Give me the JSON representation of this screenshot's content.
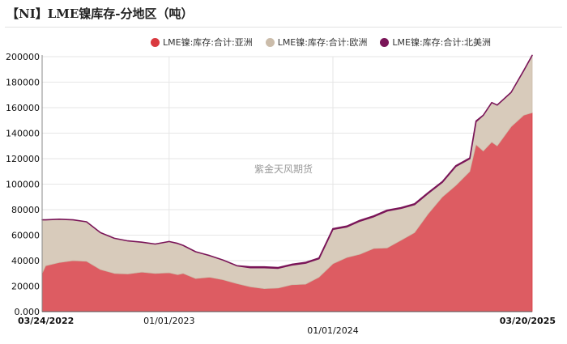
{
  "chart_data": {
    "type": "area",
    "stacked": true,
    "title": "【NI】LME镍库存-分地区（吨）",
    "watermark": "紫金天风期货",
    "yticks": [
      "0.000",
      "20000",
      "40000",
      "60000",
      "80000",
      "100000",
      "120000",
      "140000",
      "160000",
      "180000",
      "200000"
    ],
    "ylim": [
      0,
      200000
    ],
    "x_range": [
      "2022-03-24",
      "2025-03-20"
    ],
    "xticks": [
      {
        "label": "03/24/2022",
        "date": "2022-03-24",
        "bold": true
      },
      {
        "label": "01/01/2023",
        "date": "2023-01-01",
        "bold": false
      },
      {
        "label": "01/01/2024",
        "date": "2024-01-01",
        "bold": false
      },
      {
        "label": "03/20/2025",
        "date": "2025-03-20",
        "bold": true
      }
    ],
    "grid": true,
    "legend_position": "top",
    "series": [
      {
        "name": "LME镍:库存:合计:亚洲",
        "color": "#d9393f",
        "fill": "#dd5c62",
        "points": [
          [
            "2022-03-24",
            30000
          ],
          [
            "2022-04-01",
            36000
          ],
          [
            "2022-05-01",
            38500
          ],
          [
            "2022-06-01",
            40000
          ],
          [
            "2022-07-01",
            39500
          ],
          [
            "2022-08-01",
            33000
          ],
          [
            "2022-09-01",
            30000
          ],
          [
            "2022-10-01",
            29500
          ],
          [
            "2022-11-01",
            31000
          ],
          [
            "2022-12-01",
            30000
          ],
          [
            "2023-01-01",
            30500
          ],
          [
            "2023-01-20",
            29000
          ],
          [
            "2023-02-01",
            30000
          ],
          [
            "2023-03-01",
            26000
          ],
          [
            "2023-04-01",
            27000
          ],
          [
            "2023-05-01",
            25000
          ],
          [
            "2023-06-01",
            22000
          ],
          [
            "2023-07-01",
            19500
          ],
          [
            "2023-08-01",
            18000
          ],
          [
            "2023-09-01",
            18500
          ],
          [
            "2023-10-01",
            21000
          ],
          [
            "2023-11-01",
            21500
          ],
          [
            "2023-12-01",
            27000
          ],
          [
            "2024-01-01",
            37500
          ],
          [
            "2024-02-01",
            42500
          ],
          [
            "2024-03-01",
            45000
          ],
          [
            "2024-04-01",
            49500
          ],
          [
            "2024-05-01",
            50000
          ],
          [
            "2024-06-01",
            56000
          ],
          [
            "2024-07-01",
            62000
          ],
          [
            "2024-08-01",
            77000
          ],
          [
            "2024-09-01",
            90000
          ],
          [
            "2024-10-01",
            99000
          ],
          [
            "2024-11-01",
            110000
          ],
          [
            "2024-11-15",
            131000
          ],
          [
            "2024-12-01",
            126000
          ],
          [
            "2024-12-20",
            133000
          ],
          [
            "2025-01-01",
            130000
          ],
          [
            "2025-02-01",
            145000
          ],
          [
            "2025-03-01",
            154000
          ],
          [
            "2025-03-20",
            156000
          ]
        ]
      },
      {
        "name": "LME镍:库存:合计:欧洲",
        "color": "#cbbcaa",
        "fill": "#d8cbbb",
        "points": [
          [
            "2022-03-24",
            42000
          ],
          [
            "2022-04-01",
            36000
          ],
          [
            "2022-05-01",
            34000
          ],
          [
            "2022-06-01",
            32000
          ],
          [
            "2022-07-01",
            31000
          ],
          [
            "2022-08-01",
            29000
          ],
          [
            "2022-09-01",
            27500
          ],
          [
            "2022-10-01",
            26000
          ],
          [
            "2022-11-01",
            23500
          ],
          [
            "2022-12-01",
            23000
          ],
          [
            "2023-01-01",
            24500
          ],
          [
            "2023-01-20",
            24500
          ],
          [
            "2023-02-01",
            22000
          ],
          [
            "2023-03-01",
            21000
          ],
          [
            "2023-04-01",
            17000
          ],
          [
            "2023-05-01",
            15500
          ],
          [
            "2023-06-01",
            14000
          ],
          [
            "2023-07-01",
            15000
          ],
          [
            "2023-08-01",
            16500
          ],
          [
            "2023-09-01",
            15500
          ],
          [
            "2023-10-01",
            15500
          ],
          [
            "2023-11-01",
            16500
          ],
          [
            "2023-12-01",
            14500
          ],
          [
            "2024-01-01",
            27000
          ],
          [
            "2024-02-01",
            24000
          ],
          [
            "2024-03-01",
            26000
          ],
          [
            "2024-04-01",
            25000
          ],
          [
            "2024-05-01",
            29000
          ],
          [
            "2024-06-01",
            25000
          ],
          [
            "2024-07-01",
            22000
          ],
          [
            "2024-08-01",
            16000
          ],
          [
            "2024-09-01",
            11500
          ],
          [
            "2024-10-01",
            15000
          ],
          [
            "2024-11-01",
            10000
          ],
          [
            "2024-11-15",
            18000
          ],
          [
            "2024-12-01",
            28000
          ],
          [
            "2024-12-20",
            31000
          ],
          [
            "2025-01-01",
            32000
          ],
          [
            "2025-02-01",
            27000
          ],
          [
            "2025-03-01",
            35000
          ],
          [
            "2025-03-20",
            45000
          ]
        ]
      },
      {
        "name": "LME镍:库存:合计:北美洲",
        "color": "#7a1558",
        "fill": "#8a2a63",
        "points": [
          [
            "2022-03-24",
            0
          ],
          [
            "2022-04-01",
            0
          ],
          [
            "2022-05-01",
            0
          ],
          [
            "2022-06-01",
            0
          ],
          [
            "2022-07-01",
            0
          ],
          [
            "2022-08-01",
            0
          ],
          [
            "2022-09-01",
            0
          ],
          [
            "2022-10-01",
            0
          ],
          [
            "2022-11-01",
            0
          ],
          [
            "2022-12-01",
            0
          ],
          [
            "2023-01-01",
            0
          ],
          [
            "2023-01-20",
            0
          ],
          [
            "2023-02-01",
            0
          ],
          [
            "2023-03-01",
            0
          ],
          [
            "2023-04-01",
            0
          ],
          [
            "2023-05-01",
            0
          ],
          [
            "2023-06-01",
            0
          ],
          [
            "2023-07-01",
            600
          ],
          [
            "2023-08-01",
            600
          ],
          [
            "2023-09-01",
            600
          ],
          [
            "2023-10-01",
            600
          ],
          [
            "2023-11-01",
            600
          ],
          [
            "2023-12-01",
            600
          ],
          [
            "2024-01-01",
            600
          ],
          [
            "2024-02-01",
            600
          ],
          [
            "2024-03-01",
            600
          ],
          [
            "2024-04-01",
            600
          ],
          [
            "2024-05-01",
            600
          ],
          [
            "2024-06-01",
            600
          ],
          [
            "2024-07-01",
            600
          ],
          [
            "2024-08-01",
            600
          ],
          [
            "2024-09-01",
            500
          ],
          [
            "2024-10-01",
            500
          ],
          [
            "2024-11-01",
            500
          ],
          [
            "2024-11-15",
            500
          ],
          [
            "2024-12-01",
            0
          ],
          [
            "2024-12-20",
            0
          ],
          [
            "2025-01-01",
            0
          ],
          [
            "2025-02-01",
            0
          ],
          [
            "2025-03-01",
            0
          ],
          [
            "2025-03-20",
            0
          ]
        ]
      }
    ]
  }
}
